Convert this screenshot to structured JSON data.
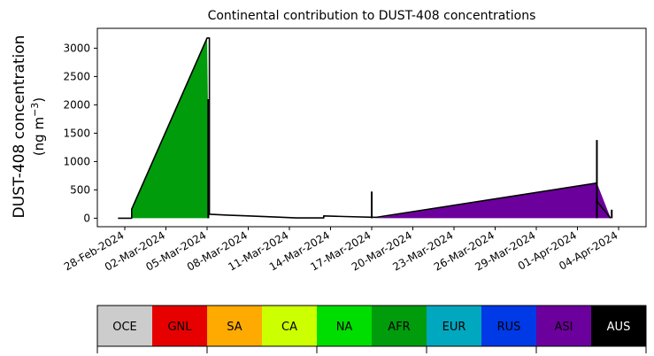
{
  "chart_data": {
    "type": "area",
    "title": "Continental contribution to DUST-408 concentrations",
    "ylabel_line1": "DUST-408 concentration",
    "ylabel_line2_prefix": "(ng m",
    "ylabel_line2_sup": "−3",
    "ylabel_line2_suffix": ")",
    "ylim": [
      -150,
      3350
    ],
    "yticks": [
      0,
      500,
      1000,
      1500,
      2000,
      2500,
      3000
    ],
    "xlim": [
      "2024-02-26",
      "2024-04-06"
    ],
    "xticks": [
      {
        "date": "2024-02-28",
        "label": "28-Feb-2024"
      },
      {
        "date": "2024-03-02",
        "label": "02-Mar-2024"
      },
      {
        "date": "2024-03-05",
        "label": "05-Mar-2024"
      },
      {
        "date": "2024-03-08",
        "label": "08-Mar-2024"
      },
      {
        "date": "2024-03-11",
        "label": "11-Mar-2024"
      },
      {
        "date": "2024-03-14",
        "label": "14-Mar-2024"
      },
      {
        "date": "2024-03-17",
        "label": "17-Mar-2024"
      },
      {
        "date": "2024-03-20",
        "label": "20-Mar-2024"
      },
      {
        "date": "2024-03-23",
        "label": "23-Mar-2024"
      },
      {
        "date": "2024-03-26",
        "label": "26-Mar-2024"
      },
      {
        "date": "2024-03-29",
        "label": "29-Mar-2024"
      },
      {
        "date": "2024-04-01",
        "label": "01-Apr-2024"
      },
      {
        "date": "2024-04-04",
        "label": "04-Apr-2024"
      }
    ],
    "series": [
      {
        "name": "NA",
        "color": "#00dd00",
        "x": [
          "2024-03-05T04:00",
          "2024-03-08T00:00"
        ],
        "y": [
          0,
          0
        ]
      },
      {
        "name": "AFR",
        "color": "#009c0c",
        "x": [
          "2024-02-27T12:00",
          "2024-02-28T12:00",
          "2024-02-28T12:00",
          "2024-03-05T00:00",
          "2024-03-05T04:00"
        ],
        "y": [
          0,
          0,
          160,
          3180,
          0
        ]
      },
      {
        "name": "ASI",
        "color": "#6c009c",
        "x": [
          "2024-03-17T08:00",
          "2024-04-02T10:00",
          "2024-04-03T10:00"
        ],
        "y": [
          0,
          620,
          0
        ]
      }
    ],
    "envelope": {
      "x": [
        "2024-02-27T12:00",
        "2024-02-28T12:00",
        "2024-02-28T12:00",
        "2024-03-05T00:00",
        "2024-03-05T04:00",
        "2024-03-05T04:00",
        "2024-03-06T00:00",
        "2024-03-08T00:00",
        "2024-03-10T00:00",
        "2024-03-11T12:00",
        "2024-03-13T12:00",
        "2024-03-13T12:00",
        "2024-03-15T00:00",
        "2024-03-17T08:00",
        "2024-04-02T10:00",
        "2024-04-02T10:00",
        "2024-04-03T10:00"
      ],
      "y": [
        0,
        0,
        160,
        3180,
        3180,
        70,
        60,
        40,
        20,
        5,
        5,
        40,
        30,
        15,
        620,
        300,
        0
      ]
    },
    "spikes": [
      {
        "x": "2024-03-05T02:00",
        "y": 2100
      },
      {
        "x": "2024-03-17T00:00",
        "y": 470
      },
      {
        "x": "2024-04-02T10:00",
        "y": 1380
      },
      {
        "x": "2024-04-03T12:00",
        "y": 150
      }
    ],
    "colorbar": [
      {
        "label": "OCE",
        "color": "#cccccc",
        "text_color": "#000000"
      },
      {
        "label": "GNL",
        "color": "#e60000",
        "text_color": "#000000"
      },
      {
        "label": "SA",
        "color": "#ffaa00",
        "text_color": "#000000"
      },
      {
        "label": "CA",
        "color": "#ccff00",
        "text_color": "#000000"
      },
      {
        "label": "NA",
        "color": "#00dd00",
        "text_color": "#000000"
      },
      {
        "label": "AFR",
        "color": "#009c0c",
        "text_color": "#000000"
      },
      {
        "label": "EUR",
        "color": "#00a8bf",
        "text_color": "#000000"
      },
      {
        "label": "RUS",
        "color": "#0039e6",
        "text_color": "#000000"
      },
      {
        "label": "ASI",
        "color": "#6c009c",
        "text_color": "#000000"
      },
      {
        "label": "AUS",
        "color": "#000000",
        "text_color": "#ffffff"
      }
    ]
  }
}
